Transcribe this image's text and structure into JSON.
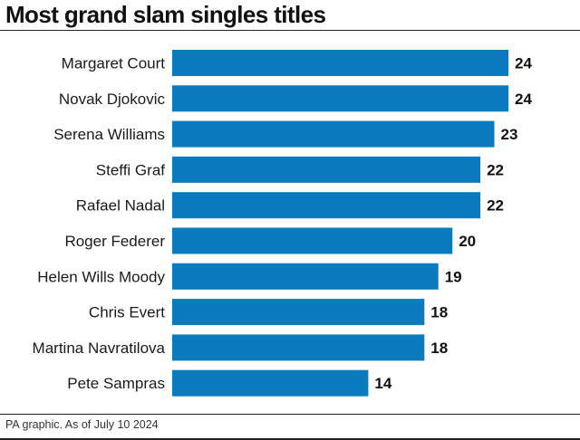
{
  "title": "Most grand slam singles titles",
  "footer": "PA graphic. As of July 10 2024",
  "colors": {
    "bar": "#0a7bbf",
    "text": "#111111"
  },
  "chart_data": {
    "type": "bar",
    "orientation": "horizontal",
    "title": "Most grand slam singles titles",
    "categories": [
      "Margaret Court",
      "Novak Djokovic",
      "Serena Williams",
      "Steffi Graf",
      "Rafael Nadal",
      "Roger Federer",
      "Helen Wills Moody",
      "Chris Evert",
      "Martina Navratilova",
      "Pete Sampras"
    ],
    "values": [
      24,
      24,
      23,
      22,
      22,
      20,
      19,
      18,
      18,
      14
    ],
    "xlabel": "",
    "ylabel": "",
    "xlim": [
      0,
      24
    ],
    "grid": false,
    "data_labels": true
  }
}
